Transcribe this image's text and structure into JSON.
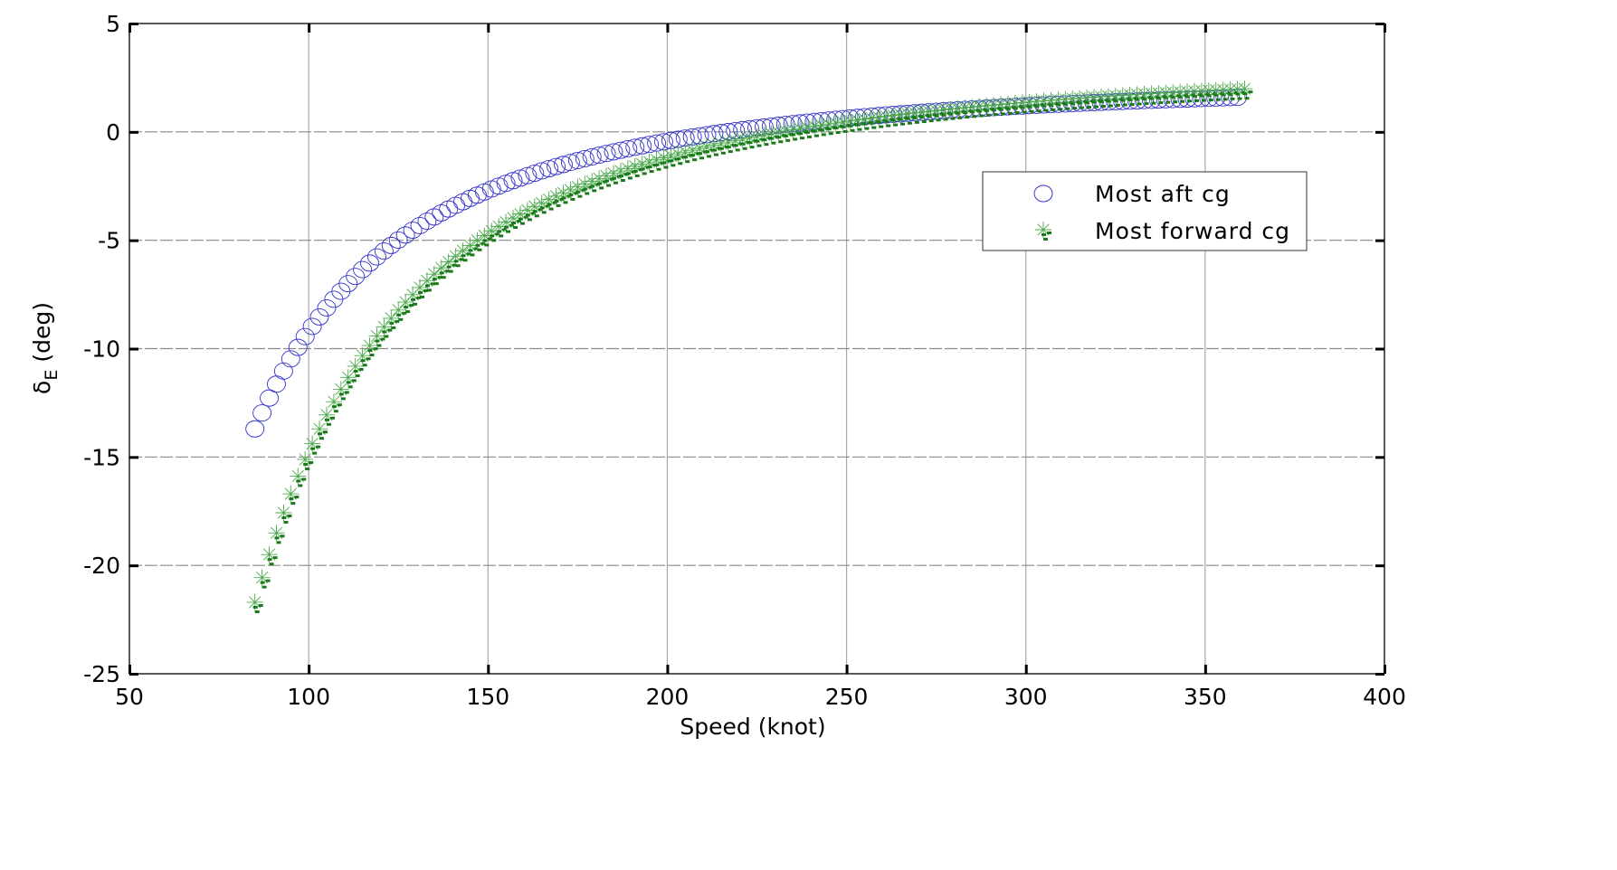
{
  "chart_data": {
    "type": "scatter",
    "title": "",
    "xlabel": "Speed (knot)",
    "ylabel": "δE (deg)",
    "ylabel_main": "δ",
    "ylabel_sub": "E",
    "ylabel_unit": "(deg)",
    "xlim": [
      50,
      400
    ],
    "ylim": [
      -25,
      5
    ],
    "xticks": [
      50,
      100,
      150,
      200,
      250,
      300,
      350,
      400
    ],
    "yticks": [
      5,
      0,
      -5,
      -10,
      -15,
      -20,
      -25
    ],
    "grid": true,
    "legend_position": "upper right (inside, below 0 line)",
    "series": [
      {
        "name": "Most aft cg",
        "marker": "circle",
        "color": "#3333cc",
        "x_start": 85,
        "x_end": 360,
        "x_step": 2,
        "model": "y = -117070 / x^2 + 2.50",
        "points": [
          [
            85,
            -13.7
          ],
          [
            87,
            -12.97
          ],
          [
            89,
            -12.28
          ],
          [
            91,
            -11.64
          ],
          [
            93,
            -11.04
          ],
          [
            95,
            -10.47
          ],
          [
            97,
            -9.94
          ],
          [
            99,
            -9.44
          ],
          [
            101,
            -8.98
          ],
          [
            103,
            -8.53
          ],
          [
            105,
            -8.12
          ],
          [
            110,
            -7.18
          ],
          [
            115,
            -6.35
          ],
          [
            120,
            -5.63
          ],
          [
            125,
            -4.99
          ],
          [
            130,
            -4.43
          ],
          [
            135,
            -3.92
          ],
          [
            140,
            -3.47
          ],
          [
            150,
            -2.7
          ],
          [
            160,
            -2.07
          ],
          [
            170,
            -1.55
          ],
          [
            180,
            -1.11
          ],
          [
            190,
            -0.74
          ],
          [
            200,
            -0.43
          ],
          [
            210,
            -0.15
          ],
          [
            220,
            0.08
          ],
          [
            230,
            0.29
          ],
          [
            240,
            0.47
          ],
          [
            250,
            0.63
          ],
          [
            260,
            0.77
          ],
          [
            270,
            0.89
          ],
          [
            280,
            1.01
          ],
          [
            290,
            1.11
          ],
          [
            300,
            1.2
          ],
          [
            310,
            1.28
          ],
          [
            320,
            1.36
          ],
          [
            330,
            1.42
          ],
          [
            340,
            1.49
          ],
          [
            350,
            1.54
          ],
          [
            360,
            1.6
          ]
        ]
      },
      {
        "name": "Most forward cg",
        "marker": "asterisk-with-dashes",
        "color": "#1a7a1a",
        "x_start": 85,
        "x_end": 362,
        "x_step": 2,
        "model": "y = -181220 / x^2 + 3.38",
        "points": [
          [
            85,
            -21.7
          ],
          [
            87,
            -20.56
          ],
          [
            89,
            -19.5
          ],
          [
            91,
            -18.5
          ],
          [
            93,
            -17.57
          ],
          [
            95,
            -16.7
          ],
          [
            97,
            -15.88
          ],
          [
            99,
            -15.11
          ],
          [
            101,
            -14.38
          ],
          [
            103,
            -13.7
          ],
          [
            105,
            -13.06
          ],
          [
            110,
            -11.6
          ],
          [
            115,
            -10.32
          ],
          [
            120,
            -9.2
          ],
          [
            125,
            -8.22
          ],
          [
            130,
            -7.34
          ],
          [
            135,
            -6.56
          ],
          [
            140,
            -5.87
          ],
          [
            150,
            -4.67
          ],
          [
            160,
            -3.7
          ],
          [
            170,
            -2.89
          ],
          [
            180,
            -2.21
          ],
          [
            190,
            -1.64
          ],
          [
            200,
            -1.15
          ],
          [
            210,
            -0.73
          ],
          [
            220,
            -0.36
          ],
          [
            230,
            -0.05
          ],
          [
            240,
            0.23
          ],
          [
            250,
            0.48
          ],
          [
            260,
            0.7
          ],
          [
            270,
            0.89
          ],
          [
            280,
            1.07
          ],
          [
            290,
            1.23
          ],
          [
            300,
            1.37
          ],
          [
            310,
            1.49
          ],
          [
            320,
            1.61
          ],
          [
            330,
            1.72
          ],
          [
            340,
            1.81
          ],
          [
            350,
            1.9
          ],
          [
            362,
            2.0
          ]
        ]
      }
    ]
  },
  "legend": {
    "items": [
      {
        "label": "Most aft cg"
      },
      {
        "label": "Most forward cg"
      }
    ]
  }
}
